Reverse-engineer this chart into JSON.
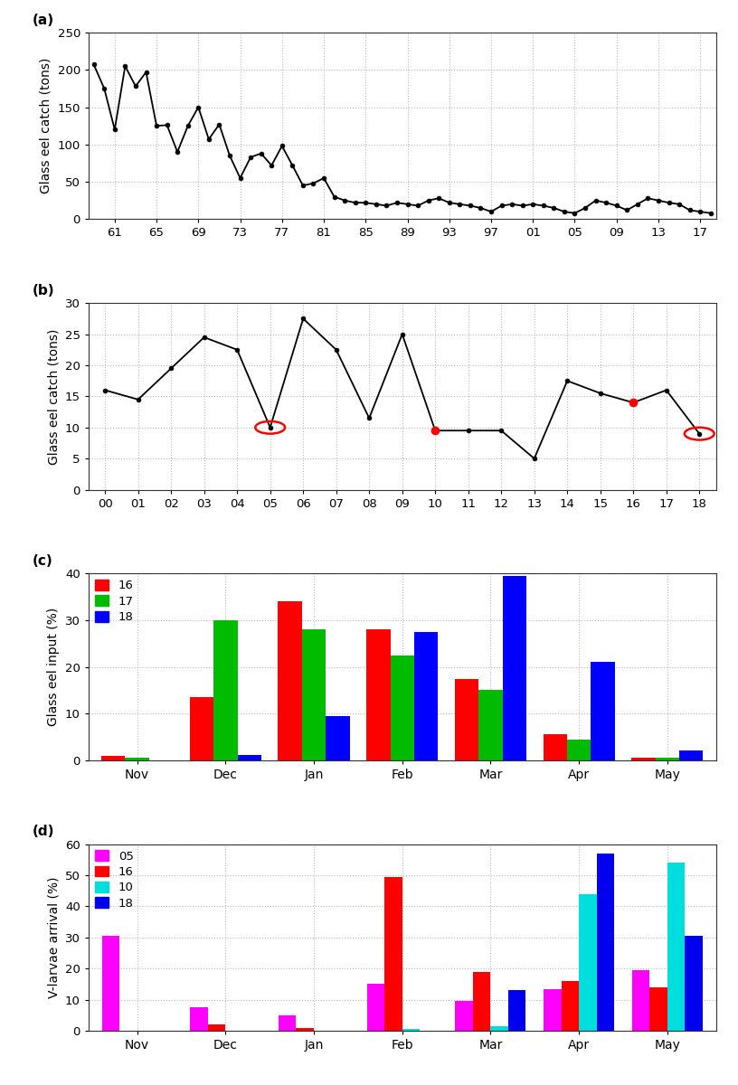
{
  "panel_a": {
    "label": "(a)",
    "ylabel": "Glass eel catch (tons)",
    "ylim": [
      0,
      250
    ],
    "yticks": [
      0,
      50,
      100,
      150,
      200,
      250
    ],
    "xtick_labels": [
      "61",
      "65",
      "69",
      "73",
      "77",
      "81",
      "85",
      "89",
      "93",
      "97",
      "01",
      "05",
      "09",
      "13",
      "17"
    ],
    "y": [
      207,
      175,
      120,
      205,
      178,
      197,
      125,
      126,
      90,
      125,
      150,
      107,
      127,
      85,
      55,
      83,
      88,
      72,
      98,
      72,
      45,
      48,
      55,
      30,
      25,
      22,
      22,
      20,
      18,
      22,
      20,
      18,
      25,
      28,
      22,
      20,
      18,
      15,
      10,
      18,
      20,
      18,
      20,
      18,
      15,
      10,
      8,
      15,
      25,
      22,
      18,
      12,
      20,
      28,
      25,
      22,
      20,
      12,
      10,
      8
    ],
    "start_year": 1959,
    "xtick_years": [
      1961,
      1965,
      1969,
      1973,
      1977,
      1981,
      1985,
      1989,
      1993,
      1997,
      2001,
      2005,
      2009,
      2013,
      2017
    ]
  },
  "panel_b": {
    "label": "(b)",
    "ylabel": "Glass eel catch (tons)",
    "ylim": [
      0,
      30
    ],
    "yticks": [
      0,
      5,
      10,
      15,
      20,
      25,
      30
    ],
    "xtick_labels": [
      "00",
      "01",
      "02",
      "03",
      "04",
      "05",
      "06",
      "07",
      "08",
      "09",
      "10",
      "11",
      "12",
      "13",
      "14",
      "15",
      "16",
      "17",
      "18"
    ],
    "y": [
      16.0,
      14.5,
      19.5,
      24.5,
      22.5,
      10.0,
      27.5,
      22.5,
      11.5,
      25.0,
      9.5,
      9.5,
      9.5,
      5.0,
      17.5,
      15.5,
      14.0,
      16.0,
      9.0
    ],
    "red_open_circle_indices": [
      5,
      18
    ],
    "red_filled_indices": [
      10,
      16
    ]
  },
  "panel_c": {
    "label": "(c)",
    "ylabel": "Glass eel input (%)",
    "ylim": [
      0,
      40
    ],
    "yticks": [
      0,
      10,
      20,
      30,
      40
    ],
    "months": [
      "Nov",
      "Dec",
      "Jan",
      "Feb",
      "Mar",
      "Apr",
      "May"
    ],
    "series": {
      "16": {
        "color": "#FF0000",
        "values": [
          1.0,
          13.5,
          34.0,
          28.0,
          17.5,
          5.5,
          0.5
        ]
      },
      "17": {
        "color": "#00BB00",
        "values": [
          0.5,
          30.0,
          28.0,
          22.5,
          15.0,
          4.5,
          0.5
        ]
      },
      "18": {
        "color": "#0000FF",
        "values": [
          0.0,
          1.2,
          9.5,
          27.5,
          39.5,
          21.0,
          2.0
        ]
      }
    },
    "legend_labels": [
      "16",
      "17",
      "18"
    ],
    "bar_width": 0.27
  },
  "panel_d": {
    "label": "(d)",
    "ylabel": "V-larvae arrival (%)",
    "ylim": [
      0,
      60
    ],
    "yticks": [
      0,
      10,
      20,
      30,
      40,
      50,
      60
    ],
    "months": [
      "Nov",
      "Dec",
      "Jan",
      "Feb",
      "Mar",
      "Apr",
      "May"
    ],
    "series": {
      "05": {
        "color": "#FF00FF",
        "values": [
          30.5,
          7.5,
          5.0,
          15.0,
          9.5,
          13.5,
          19.5
        ]
      },
      "16": {
        "color": "#FF0000",
        "values": [
          0.0,
          2.0,
          1.0,
          49.5,
          19.0,
          16.0,
          14.0
        ]
      },
      "10": {
        "color": "#00DDDD",
        "values": [
          0.0,
          0.0,
          0.0,
          0.5,
          1.5,
          44.0,
          54.0
        ]
      },
      "18": {
        "color": "#0000EE",
        "values": [
          0.0,
          0.0,
          0.0,
          0.0,
          13.0,
          57.0,
          30.5
        ]
      }
    },
    "legend_labels": [
      "05",
      "16",
      "10",
      "18"
    ],
    "bar_width": 0.2
  },
  "bg_color": "#ffffff",
  "grid_color": "#bbbbbb",
  "line_color": "#000000"
}
